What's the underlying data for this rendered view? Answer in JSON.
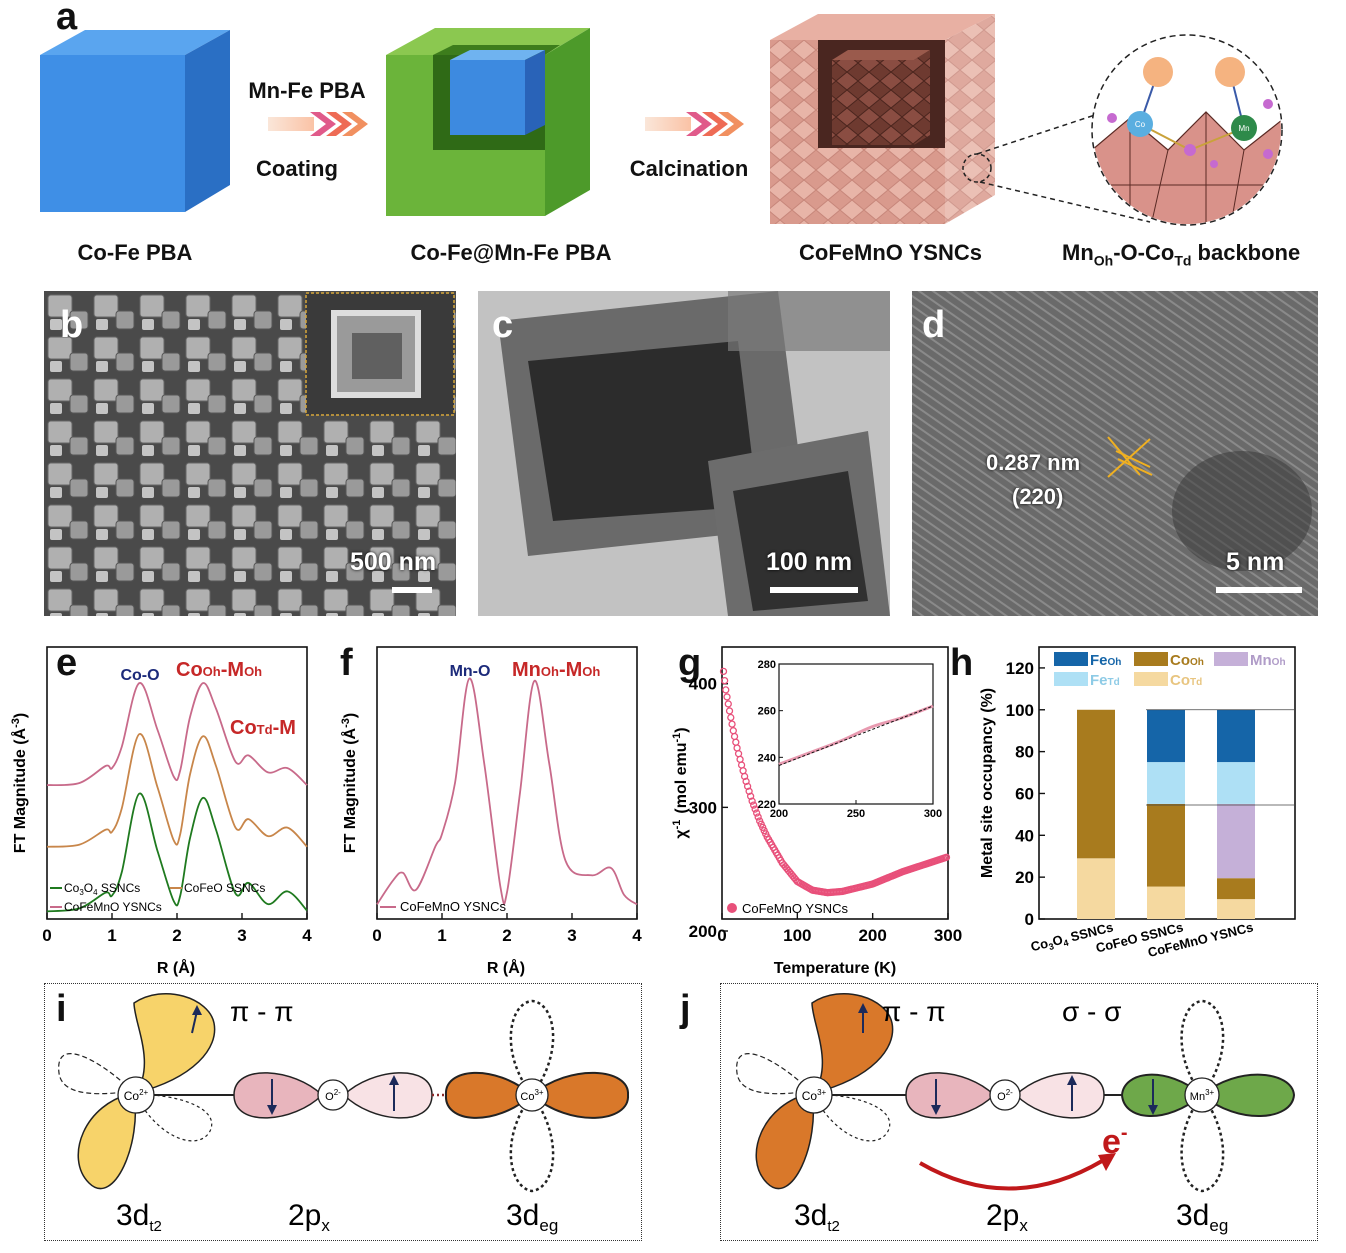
{
  "panels": {
    "a": {
      "label": "a",
      "captions": [
        "Co-Fe PBA",
        "Co-Fe@Mn-Fe PBA",
        "CoFeMnO YSNCs"
      ],
      "backbone_caption": {
        "p1": "Mn",
        "s1": "Oh",
        "p2": "-O-Co",
        "s2": "Td",
        "p3": " backbone"
      },
      "arrow1": {
        "top": "Mn-Fe PBA",
        "bottom": "Coating"
      },
      "arrow2": {
        "bottom": "Calcination"
      },
      "atoms": {
        "co": "Co",
        "mn": "Mn"
      }
    },
    "b": {
      "label": "b",
      "scale": "500 nm"
    },
    "c": {
      "label": "c",
      "scale": "100 nm"
    },
    "d": {
      "label": "d",
      "scale": "5 nm",
      "spacing": "0.287 nm",
      "plane": "(220)"
    },
    "e": {
      "label": "e",
      "ylabel": "FT Magnitude (Å",
      "ylabel_sup": "-3",
      "xlabel": "R (Å)",
      "xticks": [
        "0",
        "1",
        "2",
        "3",
        "4"
      ],
      "peak1": "Co-O",
      "peak2": {
        "p": "Co",
        "s": "Oh",
        "p2": "-M",
        "s2": "Oh"
      },
      "peak3": {
        "p": "Co",
        "s": "Td",
        "p2": "-M"
      },
      "legend": [
        {
          "p": "Co",
          "s1": "3",
          "m": "O",
          "s2": "4",
          "e": " SSNCs"
        },
        {
          "t": "CoFeO SSNCs"
        },
        {
          "t": "CoFeMnO YSNCs"
        }
      ],
      "colors": {
        "co3o4": "#1f7a1f",
        "cofeo": "#c8864a",
        "cofemno": "#c86a8a"
      }
    },
    "f": {
      "label": "f",
      "ylabel": "FT Magnitude (Å",
      "ylabel_sup": "-3",
      "xlabel": "R (Å)",
      "xticks": [
        "0",
        "1",
        "2",
        "3",
        "4"
      ],
      "peak1": "Mn-O",
      "peak2": {
        "p": "Mn",
        "s": "Oh",
        "p2": "-M",
        "s2": "Oh"
      },
      "legend": "CoFeMnO YSNCs"
    },
    "g": {
      "label": "g",
      "ylabel": "(mol emu",
      "ylabel_sym": "χ",
      "xlabel": "Temperature (K)",
      "xticks": [
        "0",
        "100",
        "200",
        "300"
      ],
      "yticks": [
        "200",
        "300",
        "400"
      ],
      "inset_xticks": [
        "200",
        "250",
        "300"
      ],
      "inset_yticks": [
        "220",
        "240",
        "260",
        "280"
      ],
      "legend": "CoFeMnO YSNCs",
      "color": "#e8507a"
    },
    "h": {
      "label": "h",
      "ylabel": "Metal site occupancy (%)",
      "yticks": [
        "0",
        "20",
        "40",
        "60",
        "80",
        "100",
        "120"
      ],
      "legend": [
        {
          "p": "Fe",
          "s": "Oh",
          "color": "#1565a8"
        },
        {
          "p": "Co",
          "s": "Oh",
          "color": "#a87b1e"
        },
        {
          "p": "Mn",
          "s": "Oh",
          "color": "#c5b0d8"
        },
        {
          "p": "Fe",
          "s": "Td",
          "color": "#aee0f5"
        },
        {
          "p": "Co",
          "s": "Td",
          "color": "#f5d9a0"
        }
      ]
    },
    "i": {
      "label": "i",
      "bond": "π - π",
      "ion1": {
        "p": "Co",
        "s": "2+"
      },
      "ion2": {
        "p": "O",
        "s": "2-"
      },
      "ion3": {
        "p": "Co",
        "s": "3+"
      },
      "orb1": {
        "p": "3d",
        "s": "t2"
      },
      "orb2": {
        "p": "2p",
        "s": "x"
      },
      "orb3": {
        "p": "3d",
        "s": "eg"
      }
    },
    "j": {
      "label": "j",
      "bond1": "π - π",
      "bond2": "σ - σ",
      "ion1": {
        "p": "Co",
        "s": "3+"
      },
      "ion2": {
        "p": "O",
        "s": "2-"
      },
      "ion3": {
        "p": "Mn",
        "s": "3+"
      },
      "electron": {
        "p": "e",
        "s": "-"
      },
      "orb1": {
        "p": "3d",
        "s": "t2"
      },
      "orb2": {
        "p": "2p",
        "s": "x"
      },
      "orb3": {
        "p": "3d",
        "s": "eg"
      }
    }
  },
  "chart_data": [
    {
      "type": "line",
      "xlabel": "R (Å)",
      "ylabel": "FT Magnitude (Å-3)",
      "xlim": [
        0,
        4
      ],
      "series": [
        {
          "name": "Co3O4 SSNCs",
          "x": [
            0,
            0.5,
            0.9,
            1.0,
            1.15,
            1.42,
            1.7,
            1.95,
            2.05,
            2.2,
            2.4,
            2.6,
            2.9,
            3.1,
            3.4,
            3.7,
            4.0
          ],
          "y": [
            0.18,
            0.25,
            0.62,
            0.55,
            1.1,
            2.95,
            1.6,
            0.42,
            0.55,
            1.9,
            2.85,
            2.1,
            0.6,
            0.85,
            0.35,
            0.65,
            0.2
          ]
        },
        {
          "name": "CoFeO SSNCs",
          "x": [
            0,
            0.5,
            0.9,
            1.0,
            1.15,
            1.42,
            1.7,
            1.95,
            2.05,
            2.2,
            2.4,
            2.6,
            2.9,
            3.1,
            3.4,
            3.7,
            4.0
          ],
          "y": [
            1.7,
            1.75,
            2.1,
            2.05,
            2.6,
            4.35,
            3.1,
            1.85,
            2.0,
            3.4,
            4.3,
            3.6,
            2.15,
            2.35,
            1.95,
            2.15,
            1.7
          ]
        },
        {
          "name": "CoFeMnO YSNCs",
          "x": [
            0,
            0.5,
            0.9,
            1.0,
            1.15,
            1.42,
            1.7,
            1.95,
            2.05,
            2.2,
            2.4,
            2.6,
            2.9,
            3.1,
            3.4,
            3.7,
            4.0
          ],
          "y": [
            3.15,
            3.2,
            3.6,
            3.55,
            4.05,
            5.55,
            4.45,
            3.35,
            3.5,
            4.75,
            5.55,
            4.95,
            3.7,
            3.85,
            3.45,
            3.55,
            3.15
          ]
        }
      ]
    },
    {
      "type": "line",
      "xlabel": "R (Å)",
      "ylabel": "FT Magnitude (Å-3)",
      "xlim": [
        0,
        4
      ],
      "series": [
        {
          "name": "CoFeMnO YSNCs",
          "x": [
            0,
            0.25,
            0.4,
            0.6,
            0.9,
            1.0,
            1.2,
            1.42,
            1.65,
            1.9,
            2.0,
            2.2,
            2.42,
            2.65,
            2.9,
            3.3,
            3.6,
            3.8,
            4.0
          ],
          "y": [
            0.3,
            0.8,
            0.95,
            0.6,
            1.5,
            1.75,
            2.8,
            4.95,
            3.2,
            0.65,
            0.55,
            2.6,
            4.9,
            3.2,
            1.2,
            0.9,
            1.05,
            0.5,
            0.3
          ]
        }
      ]
    },
    {
      "type": "scatter",
      "xlabel": "Temperature (K)",
      "ylabel": "χ-1 (mol emu-1)",
      "xlim": [
        0,
        300
      ],
      "ylim": [
        200,
        420
      ],
      "series": [
        {
          "name": "CoFeMnO YSNCs",
          "x": [
            2,
            5,
            10,
            15,
            20,
            30,
            40,
            50,
            60,
            80,
            100,
            120,
            140,
            160,
            180,
            200,
            220,
            240,
            260,
            280,
            300
          ],
          "y": [
            410,
            395,
            378,
            362,
            348,
            325,
            305,
            289,
            276,
            255,
            240,
            233,
            231,
            232,
            235,
            238,
            243,
            248,
            252,
            256,
            260
          ]
        }
      ],
      "inset": {
        "xlim": [
          200,
          300
        ],
        "ylim": [
          220,
          280
        ],
        "x": [
          200,
          220,
          240,
          260,
          280,
          300
        ],
        "y": [
          237,
          242,
          247,
          253,
          257,
          262
        ]
      }
    },
    {
      "type": "bar",
      "ylabel": "Metal site occupancy (%)",
      "ylim": [
        0,
        130
      ],
      "categories": [
        "Co3O4 SSNCs",
        "CoFeO SSNCs",
        "CoFeMnO YSNCs"
      ],
      "series": [
        {
          "name": "CoTd",
          "values": [
            29,
            15.5,
            9.5
          ]
        },
        {
          "name": "CoOh",
          "values": [
            71,
            39.5,
            10
          ]
        },
        {
          "name": "MnOh",
          "values": [
            0,
            0,
            35.5
          ]
        },
        {
          "name": "FeTd",
          "values": [
            0,
            20,
            20
          ]
        },
        {
          "name": "FeOh",
          "values": [
            0,
            25,
            25
          ]
        }
      ]
    }
  ]
}
